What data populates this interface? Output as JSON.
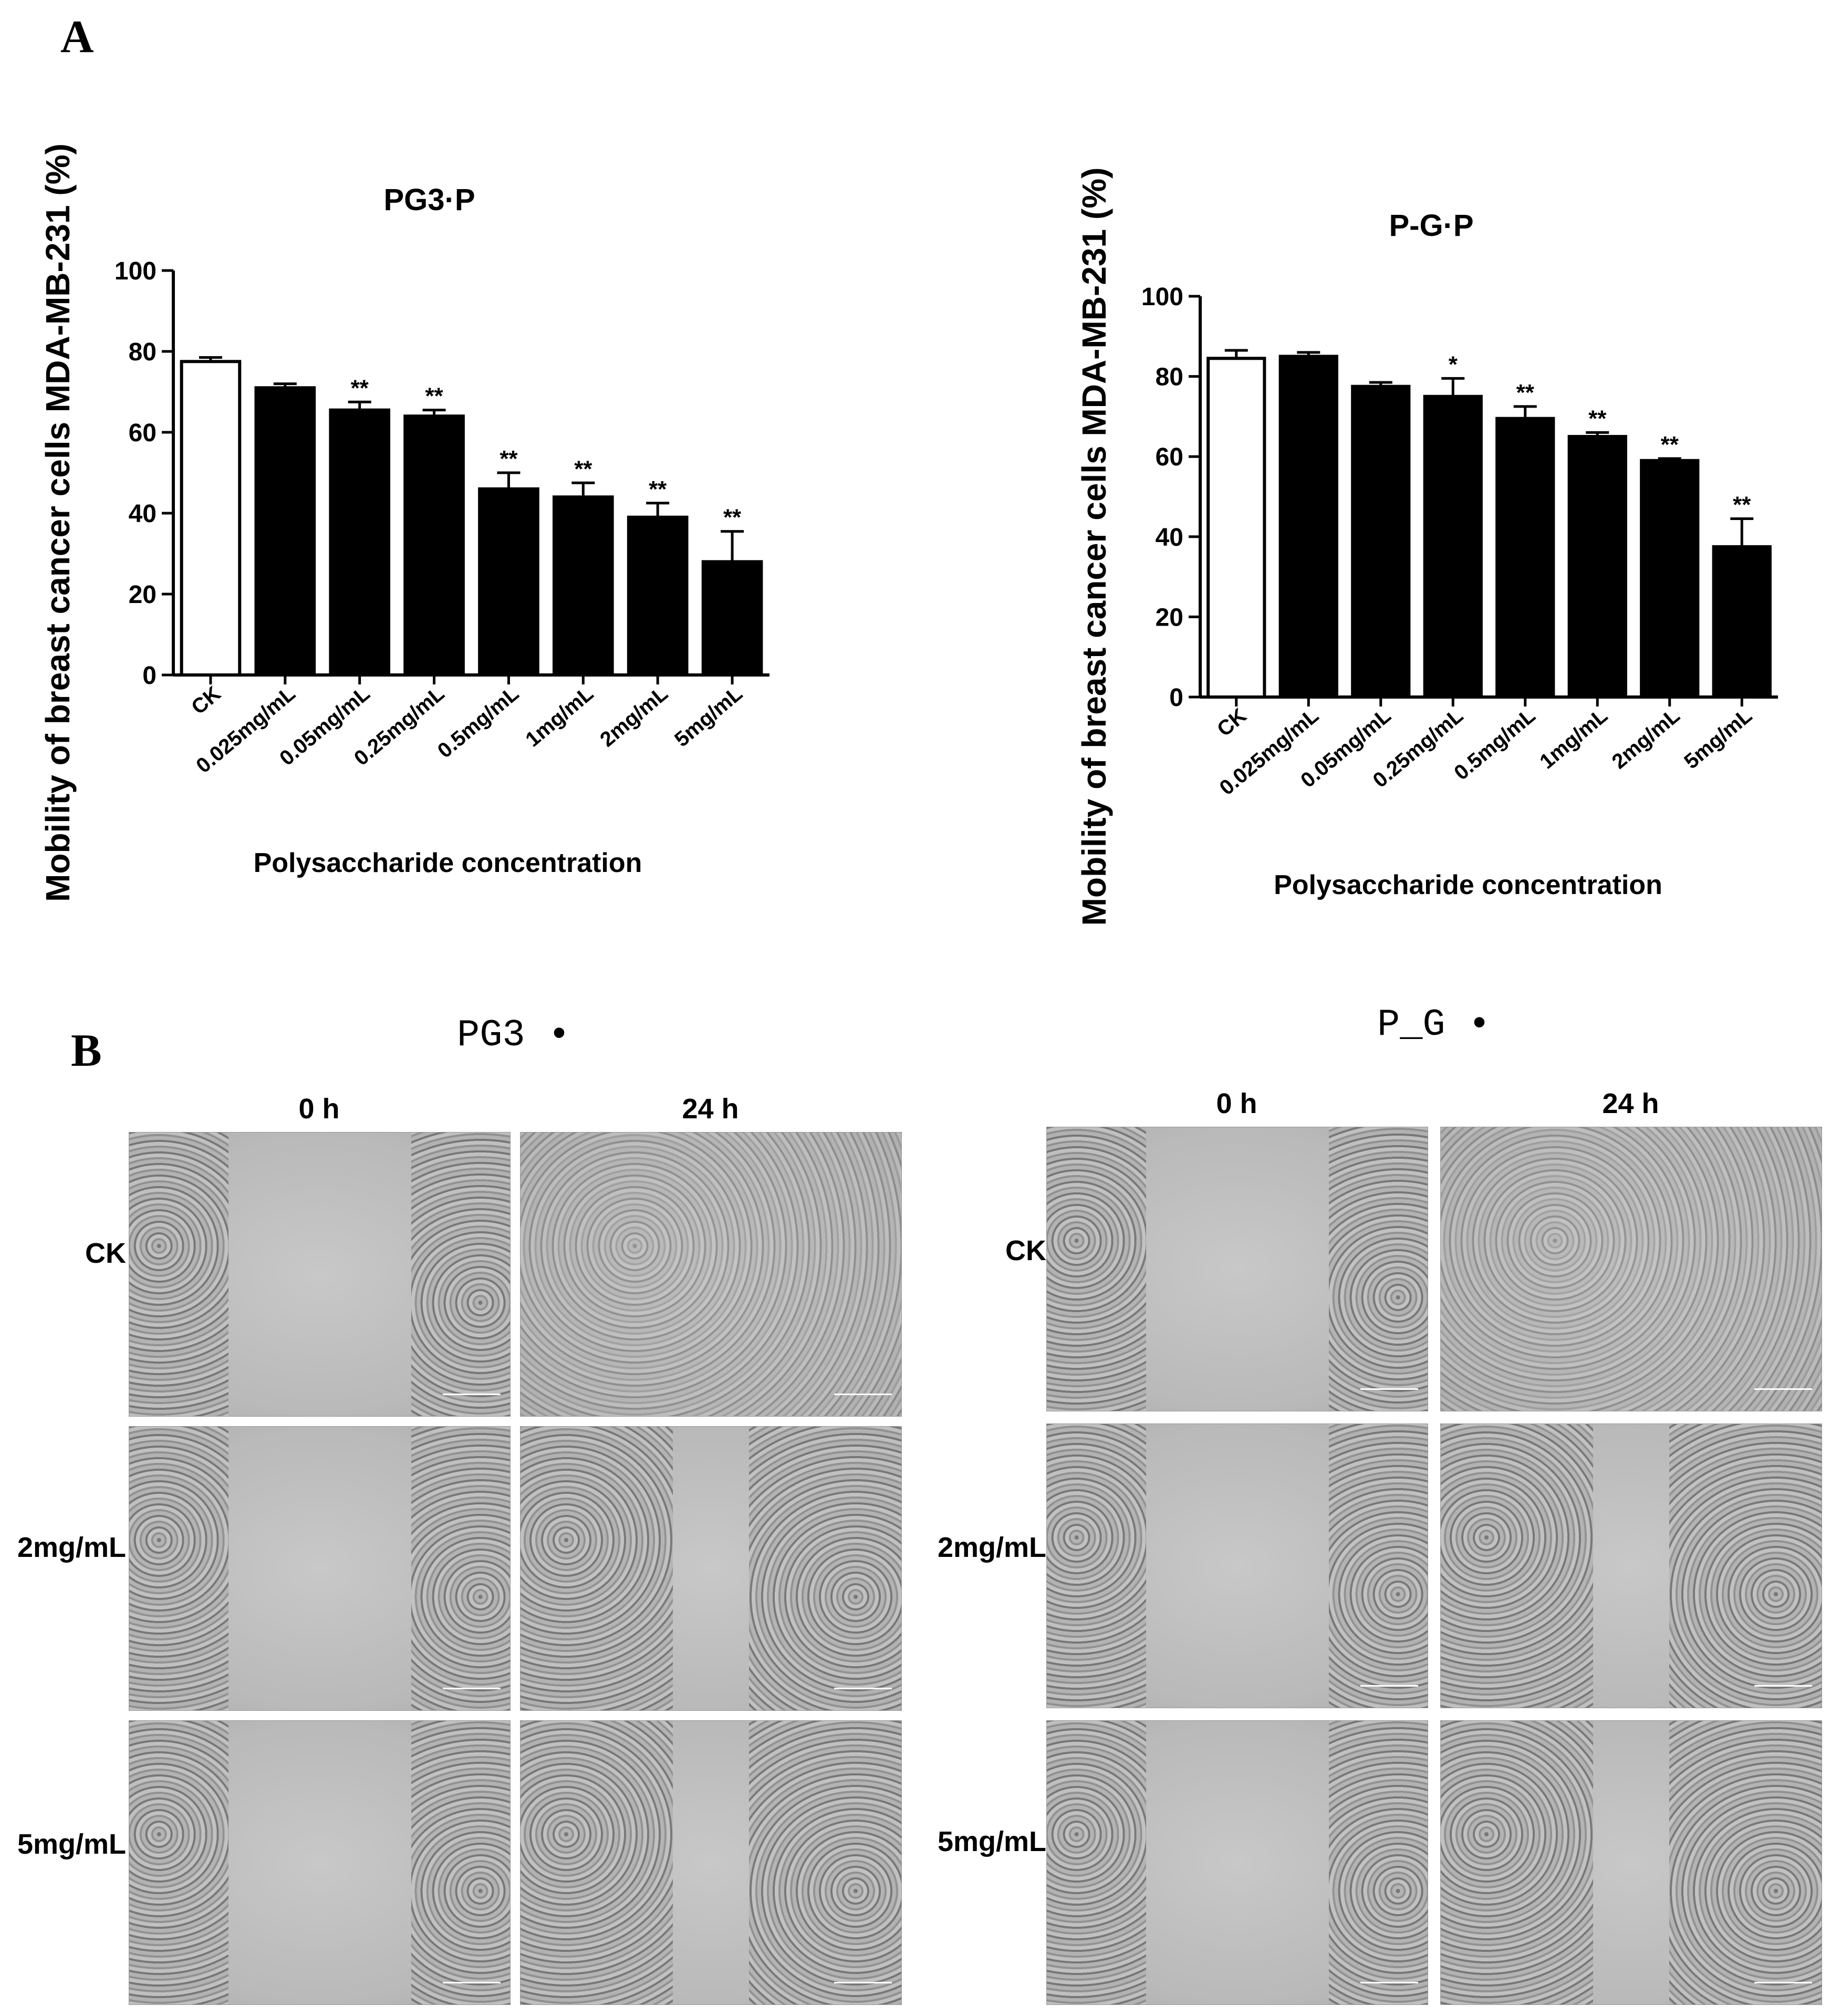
{
  "panels": {
    "a_label": "A",
    "b_label": "B"
  },
  "chart_data": [
    {
      "type": "bar",
      "title": "PG3·P",
      "xlabel": "Polysaccharide concentration",
      "ylabel": "Mobility of breast cancer cells MDA-MB-231 (%)",
      "ylim": [
        0,
        100
      ],
      "yticks": [
        0,
        20,
        40,
        60,
        80,
        100
      ],
      "categories": [
        "CK",
        "0.025mg/mL",
        "0.05mg/mL",
        "0.25mg/mL",
        "0.5mg/mL",
        "1mg/mL",
        "2mg/mL",
        "5mg/mL"
      ],
      "values": [
        77.5,
        71,
        65.5,
        64,
        46,
        44,
        39,
        28
      ],
      "errors": [
        1,
        1,
        2,
        1.5,
        4,
        3.5,
        3.5,
        7.5
      ],
      "significance": [
        "",
        "",
        "**",
        "**",
        "**",
        "**",
        "**",
        "**"
      ],
      "fill": [
        "#ffffff",
        "#000000",
        "#000000",
        "#000000",
        "#000000",
        "#000000",
        "#000000",
        "#000000"
      ]
    },
    {
      "type": "bar",
      "title": "P-G·P",
      "xlabel": "Polysaccharide concentration",
      "ylabel": "Mobility of breast cancer cells MDA-MB-231 (%)",
      "ylim": [
        0,
        100
      ],
      "yticks": [
        0,
        20,
        40,
        60,
        80,
        100
      ],
      "categories": [
        "CK",
        "0.025mg/mL",
        "0.05mg/mL",
        "0.25mg/mL",
        "0.5mg/mL",
        "1mg/mL",
        "2mg/mL",
        "5mg/mL"
      ],
      "values": [
        84.5,
        85,
        77.5,
        75,
        69.5,
        65,
        59,
        37.5
      ],
      "errors": [
        2,
        1,
        1,
        4.5,
        3,
        1,
        0.5,
        7
      ],
      "significance": [
        "",
        "",
        "",
        "*",
        "**",
        "**",
        "**",
        "**"
      ],
      "fill": [
        "#ffffff",
        "#000000",
        "#000000",
        "#000000",
        "#000000",
        "#000000",
        "#000000",
        "#000000"
      ]
    }
  ],
  "micrographs": {
    "left": {
      "title": "PG3 •",
      "columns": [
        "0 h",
        "24 h"
      ],
      "rows": [
        "CK",
        "2mg/mL",
        "5mg/mL"
      ]
    },
    "right": {
      "title": "P_G •",
      "columns": [
        "0 h",
        "24 h"
      ],
      "rows": [
        "CK",
        "2mg/mL",
        "5mg/mL"
      ]
    }
  }
}
